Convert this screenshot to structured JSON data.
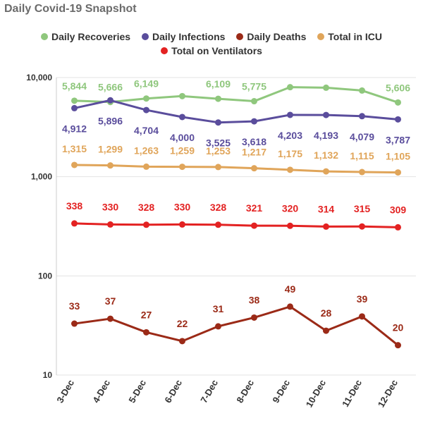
{
  "chart_data": {
    "type": "line",
    "title": "Daily Covid-19 Snapshot",
    "xlabel": "",
    "ylabel": "",
    "yscale": "log",
    "ylim": [
      10,
      10000
    ],
    "yticks": [
      10,
      100,
      1000,
      10000
    ],
    "ytick_labels": [
      "10",
      "100",
      "1,000",
      "10,000"
    ],
    "grid": "horizontal",
    "legend_position": "top",
    "categories": [
      "3-Dec",
      "4-Dec",
      "5-Dec",
      "6-Dec",
      "7-Dec",
      "8-Dec",
      "9-Dec",
      "10-Dec",
      "11-Dec",
      "12-Dec"
    ],
    "series": [
      {
        "name": "Daily Recoveries",
        "color": "#8fc77d",
        "values": [
          5844,
          5666,
          6149,
          6500,
          6109,
          5775,
          8000,
          7900,
          7400,
          5606
        ],
        "labels": [
          "5,844",
          "5,666",
          "6,149",
          "",
          "6,109",
          "5,775",
          "",
          "",
          "",
          "5,606"
        ]
      },
      {
        "name": "Daily Infections",
        "color": "#5a4d9c",
        "values": [
          4912,
          5896,
          4704,
          4000,
          3525,
          3618,
          4203,
          4193,
          4079,
          3787
        ],
        "labels": [
          "4,912",
          "5,896",
          "4,704",
          "4,000",
          "3,525",
          "3,618",
          "4,203",
          "4,193",
          "4,079",
          "3,787"
        ]
      },
      {
        "name": "Daily Deaths",
        "color": "#9b2a17",
        "values": [
          33,
          37,
          27,
          22,
          31,
          38,
          49,
          28,
          39,
          20
        ],
        "labels": [
          "33",
          "37",
          "27",
          "22",
          "31",
          "38",
          "49",
          "28",
          "39",
          "20"
        ]
      },
      {
        "name": "Total in ICU",
        "color": "#e0a55a",
        "values": [
          1315,
          1299,
          1263,
          1259,
          1253,
          1217,
          1175,
          1132,
          1115,
          1105
        ],
        "labels": [
          "1,315",
          "1,299",
          "1,263",
          "1,259",
          "1,253",
          "1,217",
          "1,175",
          "1,132",
          "1,115",
          "1,105"
        ]
      },
      {
        "name": "Total on Ventilators",
        "color": "#e32222",
        "values": [
          338,
          330,
          328,
          330,
          328,
          321,
          320,
          314,
          315,
          309
        ],
        "labels": [
          "338",
          "330",
          "328",
          "330",
          "328",
          "321",
          "320",
          "314",
          "315",
          "309"
        ]
      }
    ]
  }
}
